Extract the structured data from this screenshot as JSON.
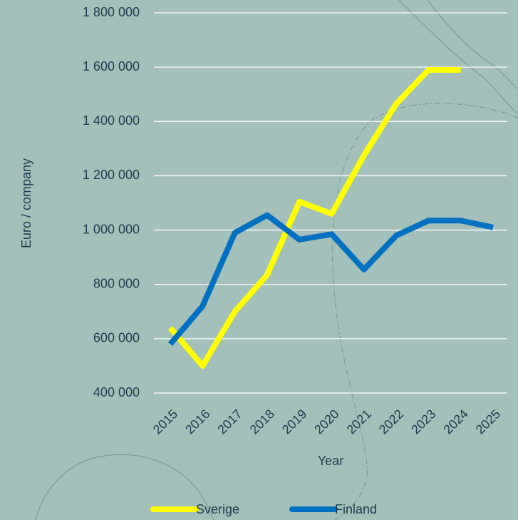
{
  "chart_data": {
    "type": "line",
    "x_label": "Year",
    "y_label": "Euro / company",
    "categories": [
      "2015",
      "2016",
      "2017",
      "2018",
      "2019",
      "2020",
      "2021",
      "2022",
      "2023",
      "2024",
      "2025"
    ],
    "series": [
      {
        "name": "Sverige",
        "color": "#ffff00",
        "values": [
          640000,
          500000,
          700000,
          835000,
          1105000,
          1060000,
          1275000,
          1465000,
          1590000,
          1590000,
          null
        ]
      },
      {
        "name": "Finland",
        "color": "#0070c0",
        "values": [
          580000,
          720000,
          990000,
          1055000,
          965000,
          985000,
          855000,
          980000,
          1035000,
          1035000,
          1010000
        ]
      }
    ],
    "ylim": [
      400000,
      1800000
    ],
    "yticks": [
      {
        "value": 400000,
        "label": "400 000"
      },
      {
        "value": 600000,
        "label": "600 000"
      },
      {
        "value": 800000,
        "label": "800 000"
      },
      {
        "value": 1000000,
        "label": "1 000 000"
      },
      {
        "value": 1200000,
        "label": "1 200 000"
      },
      {
        "value": 1400000,
        "label": "1 400 000"
      },
      {
        "value": 1600000,
        "label": "1 600 000"
      },
      {
        "value": 1800000,
        "label": "1 800 000"
      }
    ],
    "grid": true,
    "legend": "bottom"
  }
}
